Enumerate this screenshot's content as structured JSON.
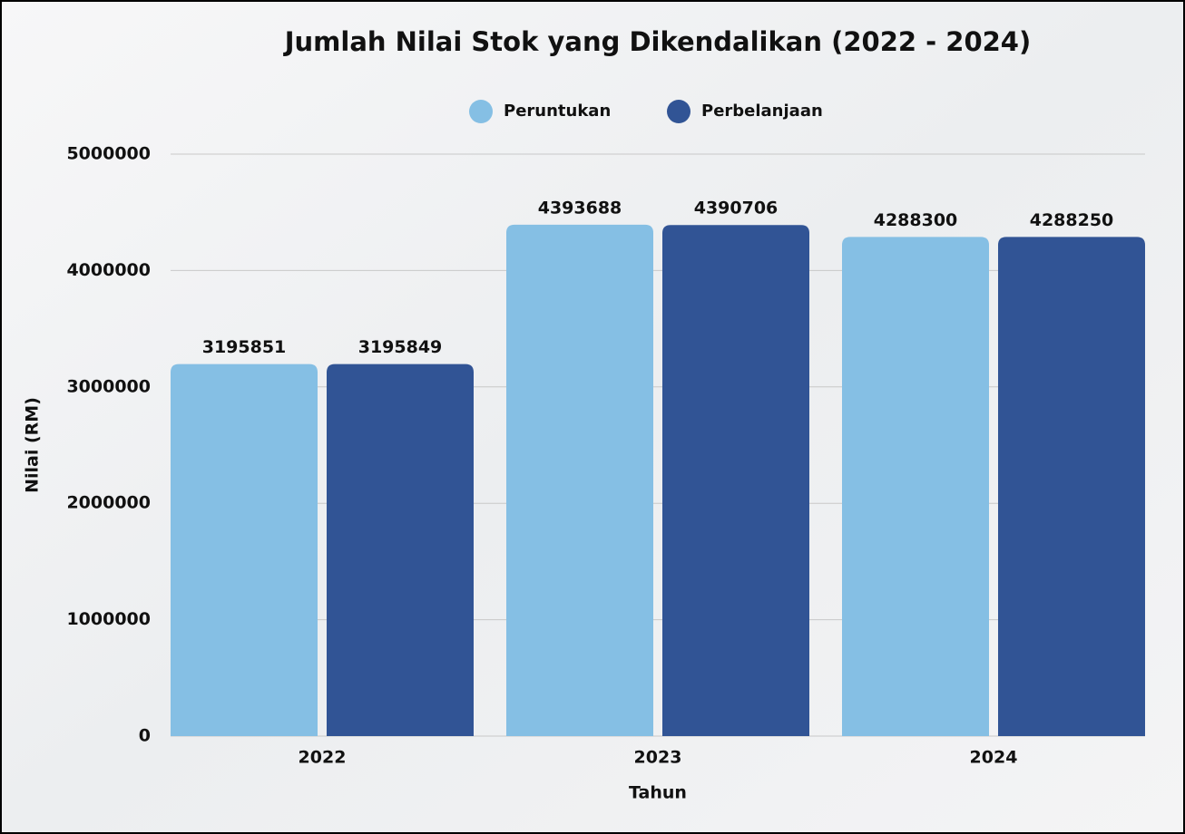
{
  "chart_data": {
    "type": "bar",
    "title": "Jumlah Nilai Stok yang Dikendalikan (2022 - 2024)",
    "x_label": "Tahun",
    "y_label": "Nilai (RM)",
    "categories": [
      "2022",
      "2023",
      "2024"
    ],
    "series": [
      {
        "name": "Peruntukan",
        "color": "#85bfe4",
        "values": [
          3195851,
          4393688,
          4288300
        ]
      },
      {
        "name": "Perbelanjaan",
        "color": "#315495",
        "values": [
          3195849,
          4390706,
          4288250
        ]
      }
    ],
    "ylim": [
      0,
      5000000
    ],
    "yticks": [
      0,
      1000000,
      2000000,
      3000000,
      4000000,
      5000000
    ],
    "grid": true,
    "legend": "top"
  }
}
